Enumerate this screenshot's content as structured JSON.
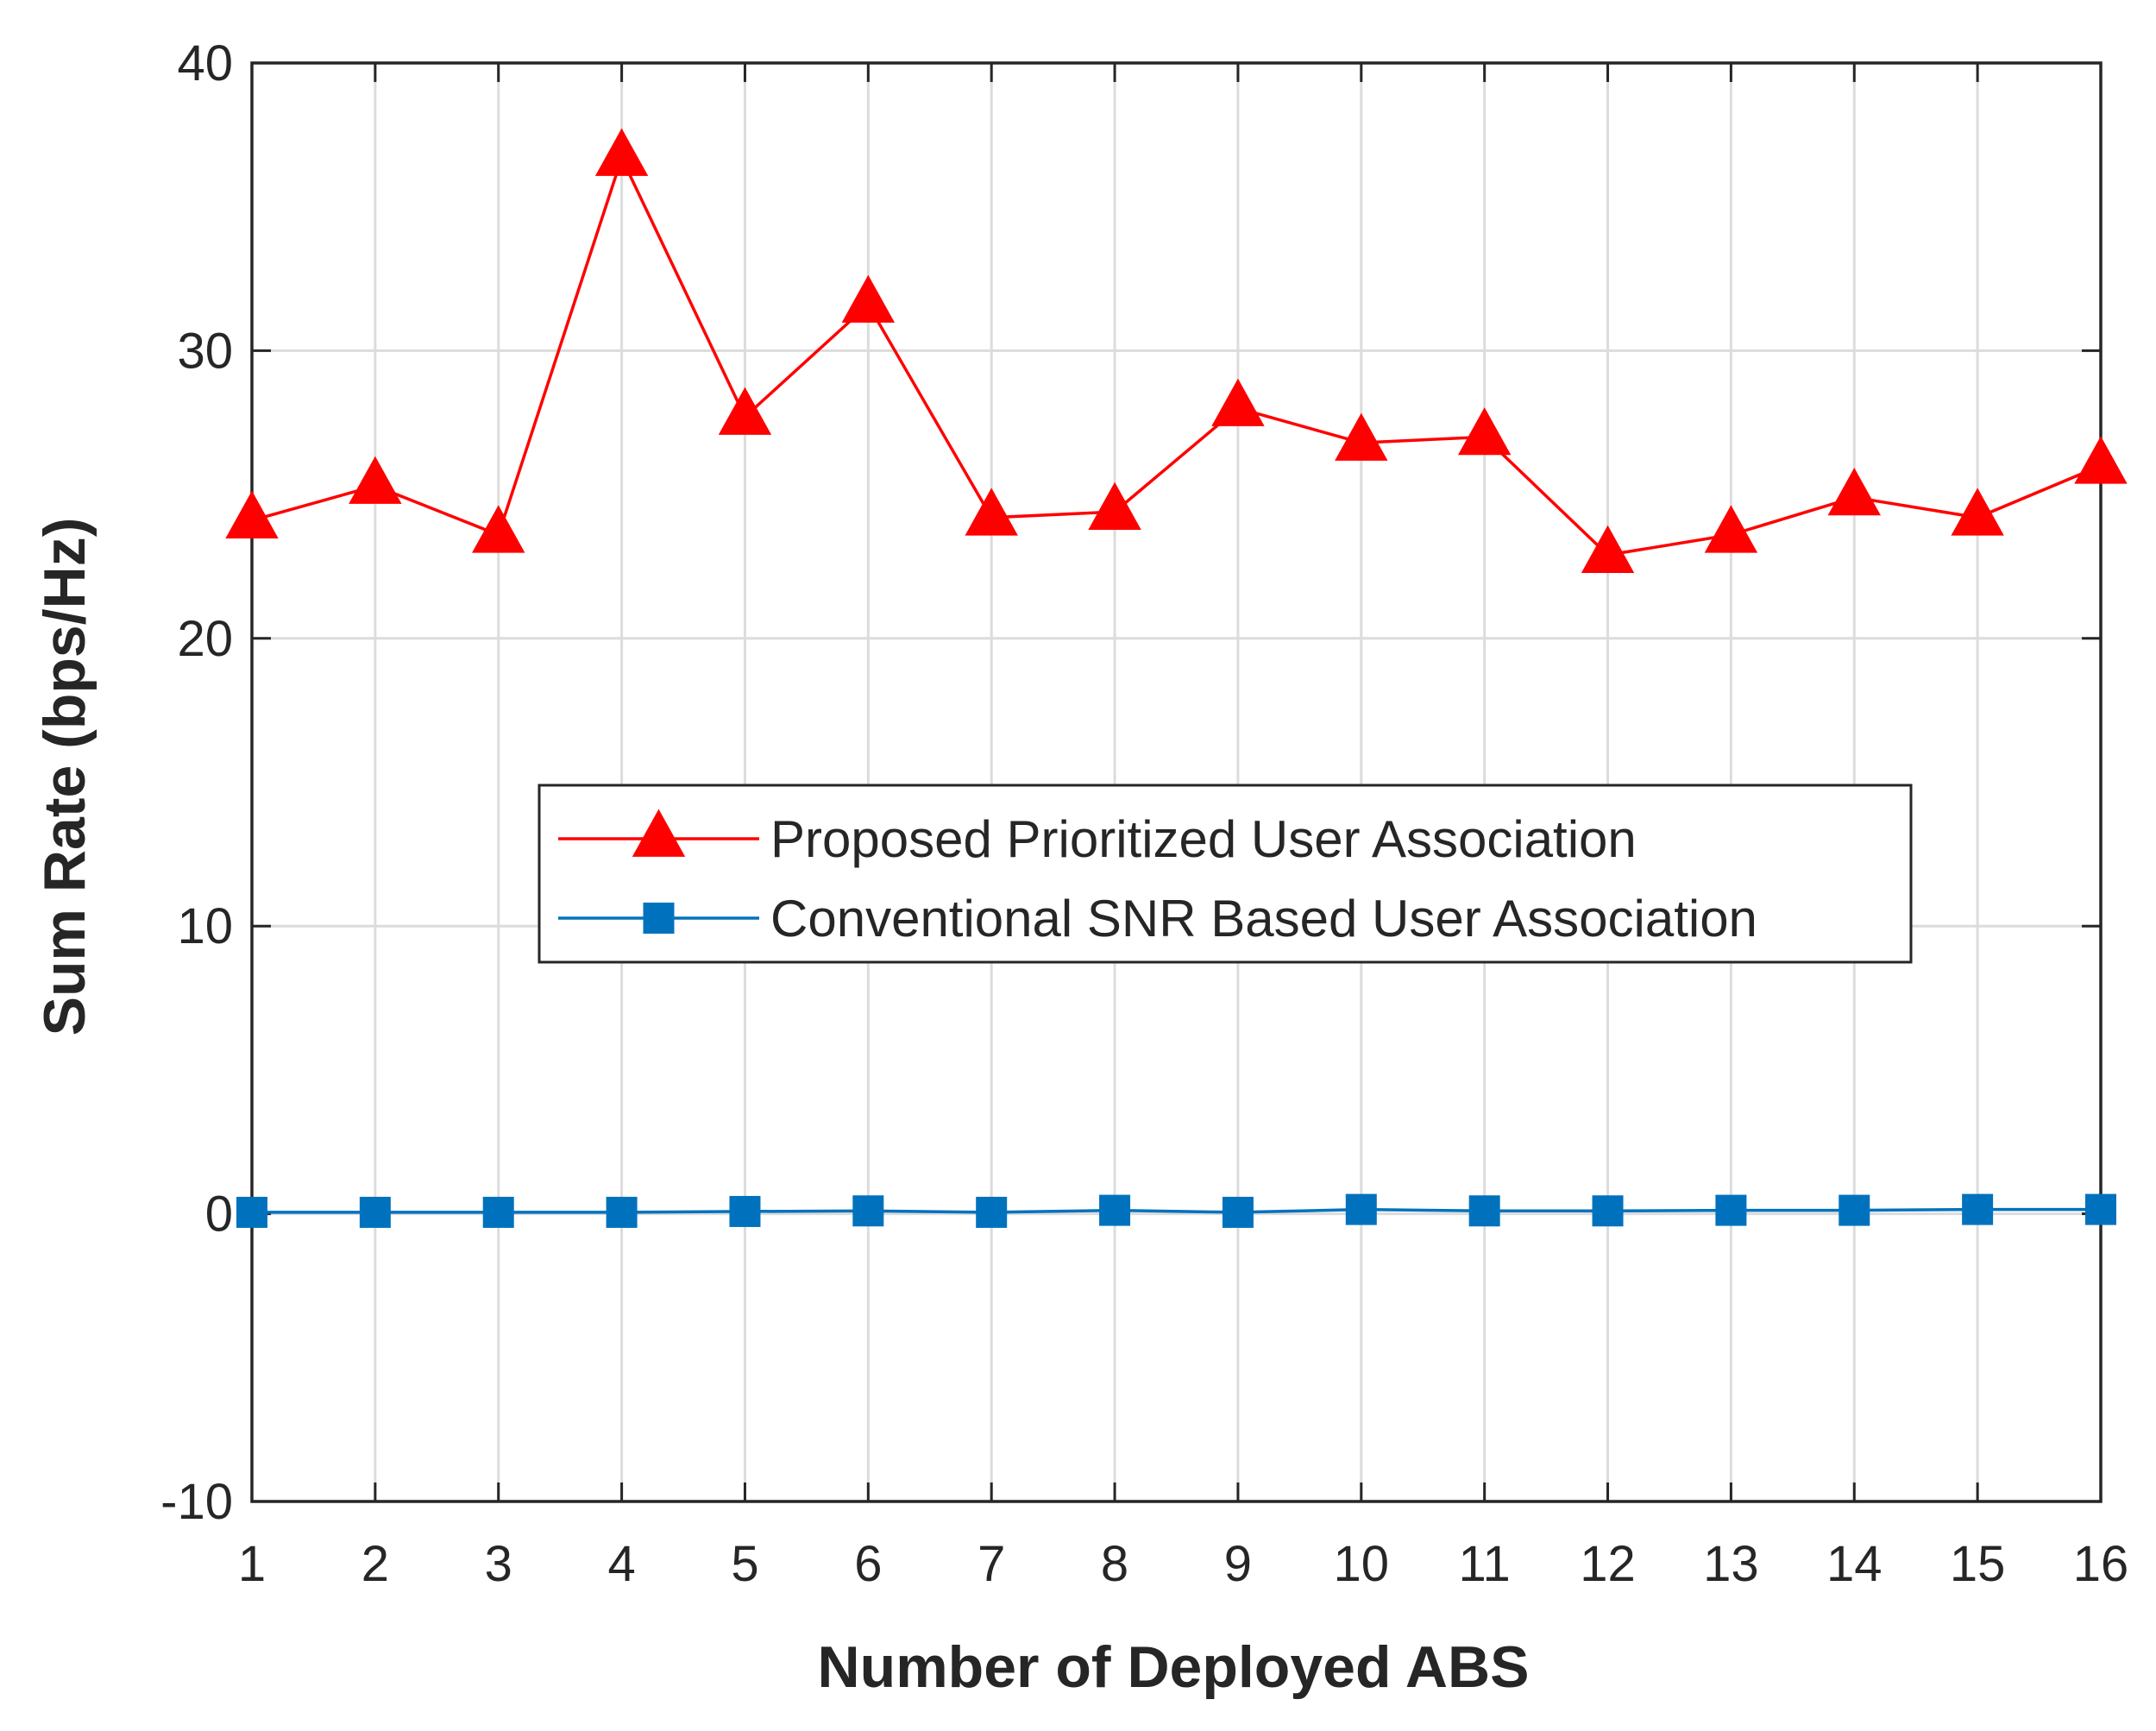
{
  "chart_data": {
    "type": "line",
    "title": "",
    "xlabel": "Number of Deployed ABS",
    "ylabel": "Sum Rate (bps/Hz)",
    "xlim": [
      1,
      16
    ],
    "ylim": [
      -10,
      40
    ],
    "x": [
      1,
      2,
      3,
      4,
      5,
      6,
      7,
      8,
      9,
      10,
      11,
      12,
      13,
      14,
      15,
      16
    ],
    "xticks": [
      "1",
      "2",
      "3",
      "4",
      "5",
      "6",
      "7",
      "8",
      "9",
      "10",
      "11",
      "12",
      "13",
      "14",
      "15",
      "16"
    ],
    "yticks": [
      "-10",
      "0",
      "10",
      "20",
      "30",
      "40"
    ],
    "grid": true,
    "legend_position": "center",
    "series": [
      {
        "name": "Proposed Prioritized User Association",
        "color": "#ff0000",
        "marker": "triangle",
        "values": [
          24.1,
          25.3,
          23.6,
          36.7,
          27.7,
          31.6,
          24.2,
          24.4,
          28.0,
          26.8,
          27.0,
          22.9,
          23.6,
          24.9,
          24.2,
          26.0
        ]
      },
      {
        "name": "Conventional SNR Based User Association",
        "color": "#0072bd",
        "marker": "square",
        "values": [
          0.05,
          0.05,
          0.05,
          0.05,
          0.08,
          0.1,
          0.05,
          0.12,
          0.05,
          0.15,
          0.1,
          0.1,
          0.12,
          0.12,
          0.15,
          0.15
        ]
      }
    ]
  }
}
